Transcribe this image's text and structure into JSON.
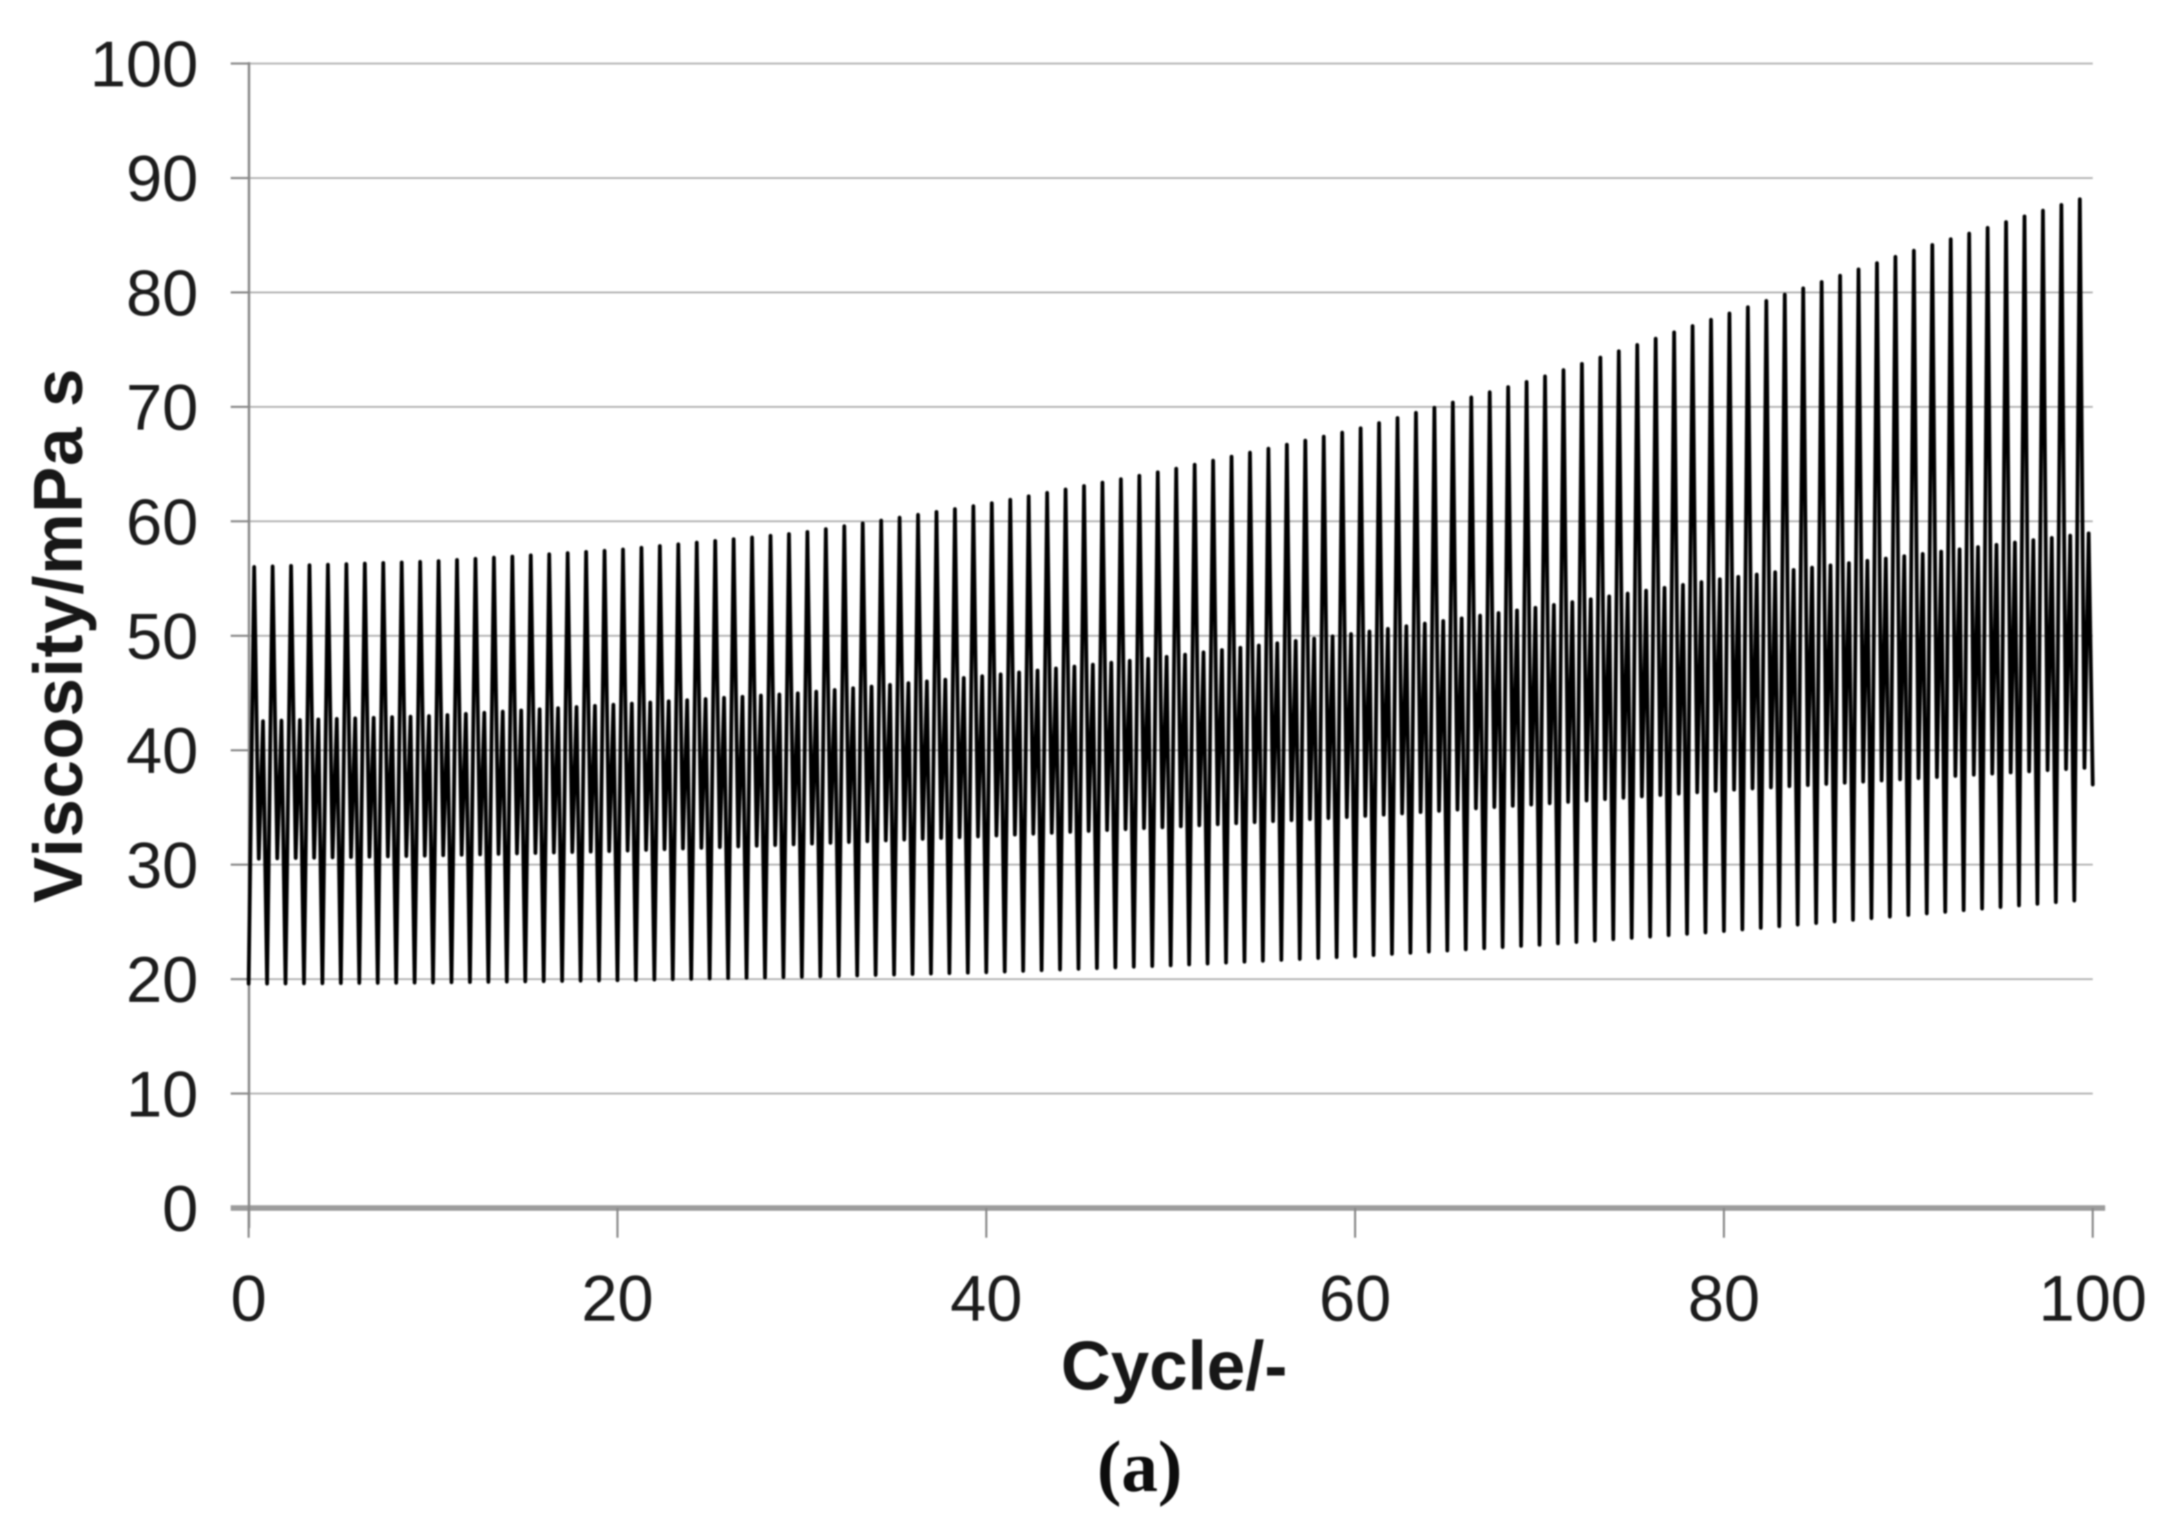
{
  "figure": {
    "caption": "(a)"
  },
  "chart_data": {
    "type": "line",
    "title": "",
    "xlabel": "Cycle/-",
    "ylabel": "Viscosity/mPa s",
    "xlim": [
      0,
      100
    ],
    "ylim": [
      0,
      100
    ],
    "x_ticks": [
      0,
      20,
      40,
      60,
      80,
      100
    ],
    "y_ticks": [
      0,
      10,
      20,
      30,
      40,
      50,
      60,
      70,
      80,
      90,
      100
    ],
    "grid": "horizontal gridlines every 10 units",
    "legend": false,
    "line_color": "#000000",
    "grid_color": "#aeaeae",
    "axis_color": "#8f8f8f",
    "background": "#ffffff",
    "waveform": "dense oscillation, one major and one minor viscosity peak per kneading cycle; amplitude grows with cycle number",
    "cycles": 100,
    "envelope_x": [
      0,
      10,
      20,
      30,
      40,
      50,
      60,
      70,
      80,
      90,
      100
    ],
    "upper_envelope": [
      56.0,
      56.5,
      57.5,
      59.0,
      61.5,
      64.5,
      68.0,
      72.5,
      78.0,
      83.5,
      88.5
    ],
    "minor_peak_envelope": [
      42.5,
      43.0,
      44.0,
      45.0,
      46.5,
      48.2,
      50.2,
      52.5,
      55.0,
      57.0,
      59.0
    ],
    "intermediate_dip_envelope": [
      30.5,
      30.8,
      31.2,
      31.8,
      32.5,
      33.3,
      34.2,
      35.3,
      36.5,
      37.5,
      38.5
    ],
    "lower_envelope": [
      19.6,
      19.7,
      19.9,
      20.2,
      20.6,
      21.2,
      22.0,
      23.0,
      24.2,
      25.6,
      27.0
    ],
    "peak_fractions": {
      "major_peak": 0.3,
      "intermediate_dip": 0.55,
      "minor_peak": 0.78
    },
    "end_value": 37
  }
}
